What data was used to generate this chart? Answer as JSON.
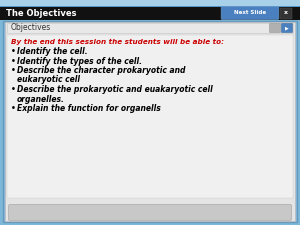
{
  "title_bar_text": "The Objectives",
  "title_bar_color": "#111111",
  "title_bar_text_color": "#ffffff",
  "next_slide_btn_color": "#4a7fc0",
  "next_slide_btn_text": "Next Slide",
  "x_btn_color": "#333333",
  "objectives_label": "Objectives",
  "outer_bg_color": "#7db8d8",
  "inner_bg_color": "#e4e4e4",
  "content_bg_color": "#f0f0f0",
  "header_text": "By the end this session the students will be able to:",
  "header_color": "#cc0000",
  "bullet_items": [
    "Identify the cell.",
    "Identify the types of the cell.",
    "Describe the character prokaryotic and",
    "eukaryotic cell",
    "Describe the prokaryotic and euakaryotic cell",
    "organelles.",
    "Explain the function for organells"
  ],
  "bullet_starts": [
    true,
    true,
    true,
    false,
    true,
    false,
    true
  ],
  "bullet_color": "#000000",
  "bottom_bar_color": "#c8c8c8",
  "top_strip_color": "#a8d0e8",
  "nav_btn1_color": "#b0b0b0",
  "nav_btn2_color": "#4a7fc0"
}
